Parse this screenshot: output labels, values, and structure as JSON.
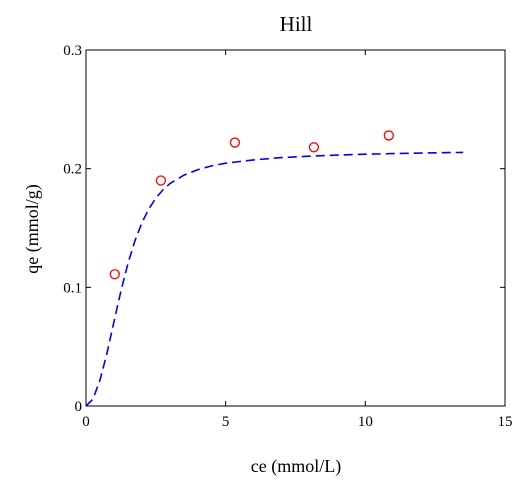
{
  "chart_data": {
    "type": "scatter",
    "title": "Hill",
    "xlabel": "ce (mmol/L)",
    "ylabel": "qe (mmol/g)",
    "xlim": [
      0,
      15
    ],
    "ylim": [
      0,
      0.3
    ],
    "x_ticks": [
      0,
      5,
      10,
      15
    ],
    "x_tick_labels": [
      "0",
      "5",
      "10",
      "15"
    ],
    "y_ticks": [
      0,
      0.1,
      0.2,
      0.3
    ],
    "y_tick_labels": [
      "0",
      "0.1",
      "0.2",
      "0.3"
    ],
    "grid": false,
    "series": [
      {
        "kind": "points",
        "marker": "circle-open",
        "color": "#ff0000",
        "x": [
          1.03,
          2.68,
          5.33,
          8.16,
          10.84
        ],
        "y": [
          0.111,
          0.19,
          0.222,
          0.218,
          0.228
        ]
      },
      {
        "kind": "fit-line",
        "style": "dashed",
        "color": "#0000ff",
        "x": [
          0,
          0.25,
          0.5,
          0.75,
          1,
          1.25,
          1.5,
          1.75,
          2,
          2.25,
          2.5,
          2.75,
          3,
          3.5,
          4,
          4.5,
          5,
          6,
          7,
          8,
          9,
          10,
          11,
          12,
          13,
          13.5
        ],
        "y": [
          0,
          0.0059,
          0.0218,
          0.0446,
          0.0708,
          0.0967,
          0.1199,
          0.1391,
          0.1543,
          0.1661,
          0.1751,
          0.182,
          0.1873,
          0.1945,
          0.1991,
          0.2023,
          0.2046,
          0.2074,
          0.2093,
          0.2105,
          0.2114,
          0.2122,
          0.2127,
          0.2131,
          0.2135,
          0.2137
        ]
      }
    ]
  }
}
